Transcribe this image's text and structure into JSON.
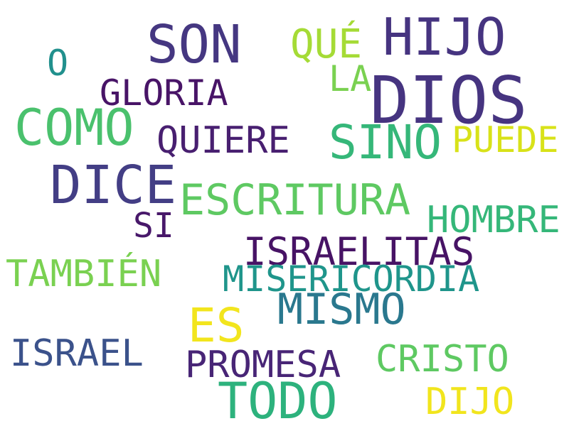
{
  "words": [
    {
      "id": "dios",
      "text": "DIOS",
      "color": "#463480"
    },
    {
      "id": "hijo",
      "text": "HIJO",
      "color": "#463480"
    },
    {
      "id": "son",
      "text": "SON",
      "color": "#453781"
    },
    {
      "id": "que",
      "text": "QUÉ",
      "color": "#a5db36"
    },
    {
      "id": "la",
      "text": "LA",
      "color": "#7ad151"
    },
    {
      "id": "o",
      "text": "O",
      "color": "#21908d"
    },
    {
      "id": "gloria",
      "text": "GLORIA",
      "color": "#481467"
    },
    {
      "id": "como",
      "text": "COMO",
      "color": "#4ac16d"
    },
    {
      "id": "quiere",
      "text": "QUIERE",
      "color": "#481f70"
    },
    {
      "id": "sino",
      "text": "SINO",
      "color": "#35b779"
    },
    {
      "id": "puede",
      "text": "PUEDE",
      "color": "#d8e219"
    },
    {
      "id": "dice",
      "text": "DICE",
      "color": "#433e85"
    },
    {
      "id": "escritura",
      "text": "ESCRITURA",
      "color": "#5ec962"
    },
    {
      "id": "hombre",
      "text": "HOMBRE",
      "color": "#35b779"
    },
    {
      "id": "si",
      "text": "SI",
      "color": "#48186a"
    },
    {
      "id": "israelitas",
      "text": "ISRAELITAS",
      "color": "#471365"
    },
    {
      "id": "tambien",
      "text": "TAMBIÉN",
      "color": "#7ad151"
    },
    {
      "id": "misericordia",
      "text": "MISERICORDIA",
      "color": "#1f958b"
    },
    {
      "id": "mismo",
      "text": "MISMO",
      "color": "#2a788e"
    },
    {
      "id": "es",
      "text": "ES",
      "color": "#f2e51d"
    },
    {
      "id": "israel",
      "text": "ISRAEL",
      "color": "#3b528b"
    },
    {
      "id": "promesa",
      "text": "PROMESA",
      "color": "#482576"
    },
    {
      "id": "cristo",
      "text": "CRISTO",
      "color": "#5ec962"
    },
    {
      "id": "todo",
      "text": "TODO",
      "color": "#2db27d"
    },
    {
      "id": "dijo",
      "text": "DIJO",
      "color": "#f1e51d"
    }
  ]
}
